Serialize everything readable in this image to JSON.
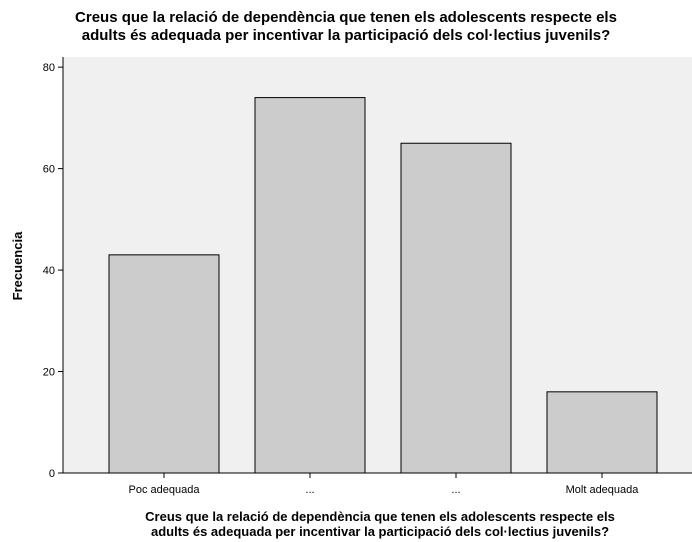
{
  "chart_data": {
    "type": "bar",
    "title": "Creus que la relació de dependència que tenen els adolescents respecte els adults és adequada per incentivar la participació dels col·lectius juvenils?",
    "title_lines": [
      "Creus que la relació de dependència que tenen els adolescents respecte els",
      "adults és adequada per incentivar la participació dels col·lectius juvenils?"
    ],
    "xlabel_lines": [
      "Creus que la relació de dependència que tenen els adolescents respecte els",
      "adults és adequada per incentivar la participació dels col·lectius juvenils?"
    ],
    "ylabel": "Frecuencia",
    "categories": [
      "Poc adequada",
      "...",
      "...",
      "Molt adequada"
    ],
    "values": [
      43,
      74,
      65,
      16
    ],
    "ylim": [
      0,
      82
    ],
    "yticks": [
      0,
      20,
      40,
      60,
      80
    ],
    "grid": false,
    "colors": {
      "plot_background": "#f0f0f0",
      "bar_fill": "#cccccc",
      "bar_stroke": "#000000",
      "axis": "#000000"
    }
  }
}
